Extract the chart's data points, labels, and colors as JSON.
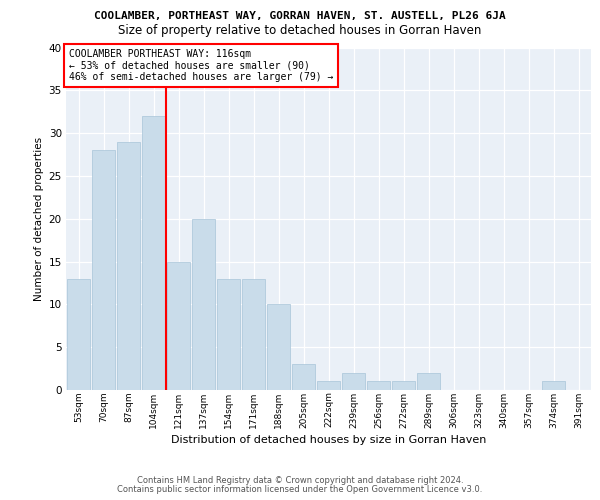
{
  "title": "COOLAMBER, PORTHEAST WAY, GORRAN HAVEN, ST. AUSTELL, PL26 6JA",
  "subtitle": "Size of property relative to detached houses in Gorran Haven",
  "xlabel": "Distribution of detached houses by size in Gorran Haven",
  "ylabel": "Number of detached properties",
  "categories": [
    "53sqm",
    "70sqm",
    "87sqm",
    "104sqm",
    "121sqm",
    "137sqm",
    "154sqm",
    "171sqm",
    "188sqm",
    "205sqm",
    "222sqm",
    "239sqm",
    "256sqm",
    "272sqm",
    "289sqm",
    "306sqm",
    "323sqm",
    "340sqm",
    "357sqm",
    "374sqm",
    "391sqm"
  ],
  "values": [
    13,
    28,
    29,
    32,
    15,
    20,
    13,
    13,
    10,
    3,
    1,
    2,
    1,
    1,
    2,
    0,
    0,
    0,
    0,
    1,
    0
  ],
  "bar_color": "#c9dcea",
  "bar_edge_color": "#a8c4d8",
  "red_line_index": 3.5,
  "annotation_lines": [
    "COOLAMBER PORTHEAST WAY: 116sqm",
    "← 53% of detached houses are smaller (90)",
    "46% of semi-detached houses are larger (79) →"
  ],
  "ylim": [
    0,
    40
  ],
  "yticks": [
    0,
    5,
    10,
    15,
    20,
    25,
    30,
    35,
    40
  ],
  "bg_color": "#eaf0f7",
  "footer1": "Contains HM Land Registry data © Crown copyright and database right 2024.",
  "footer2": "Contains public sector information licensed under the Open Government Licence v3.0."
}
